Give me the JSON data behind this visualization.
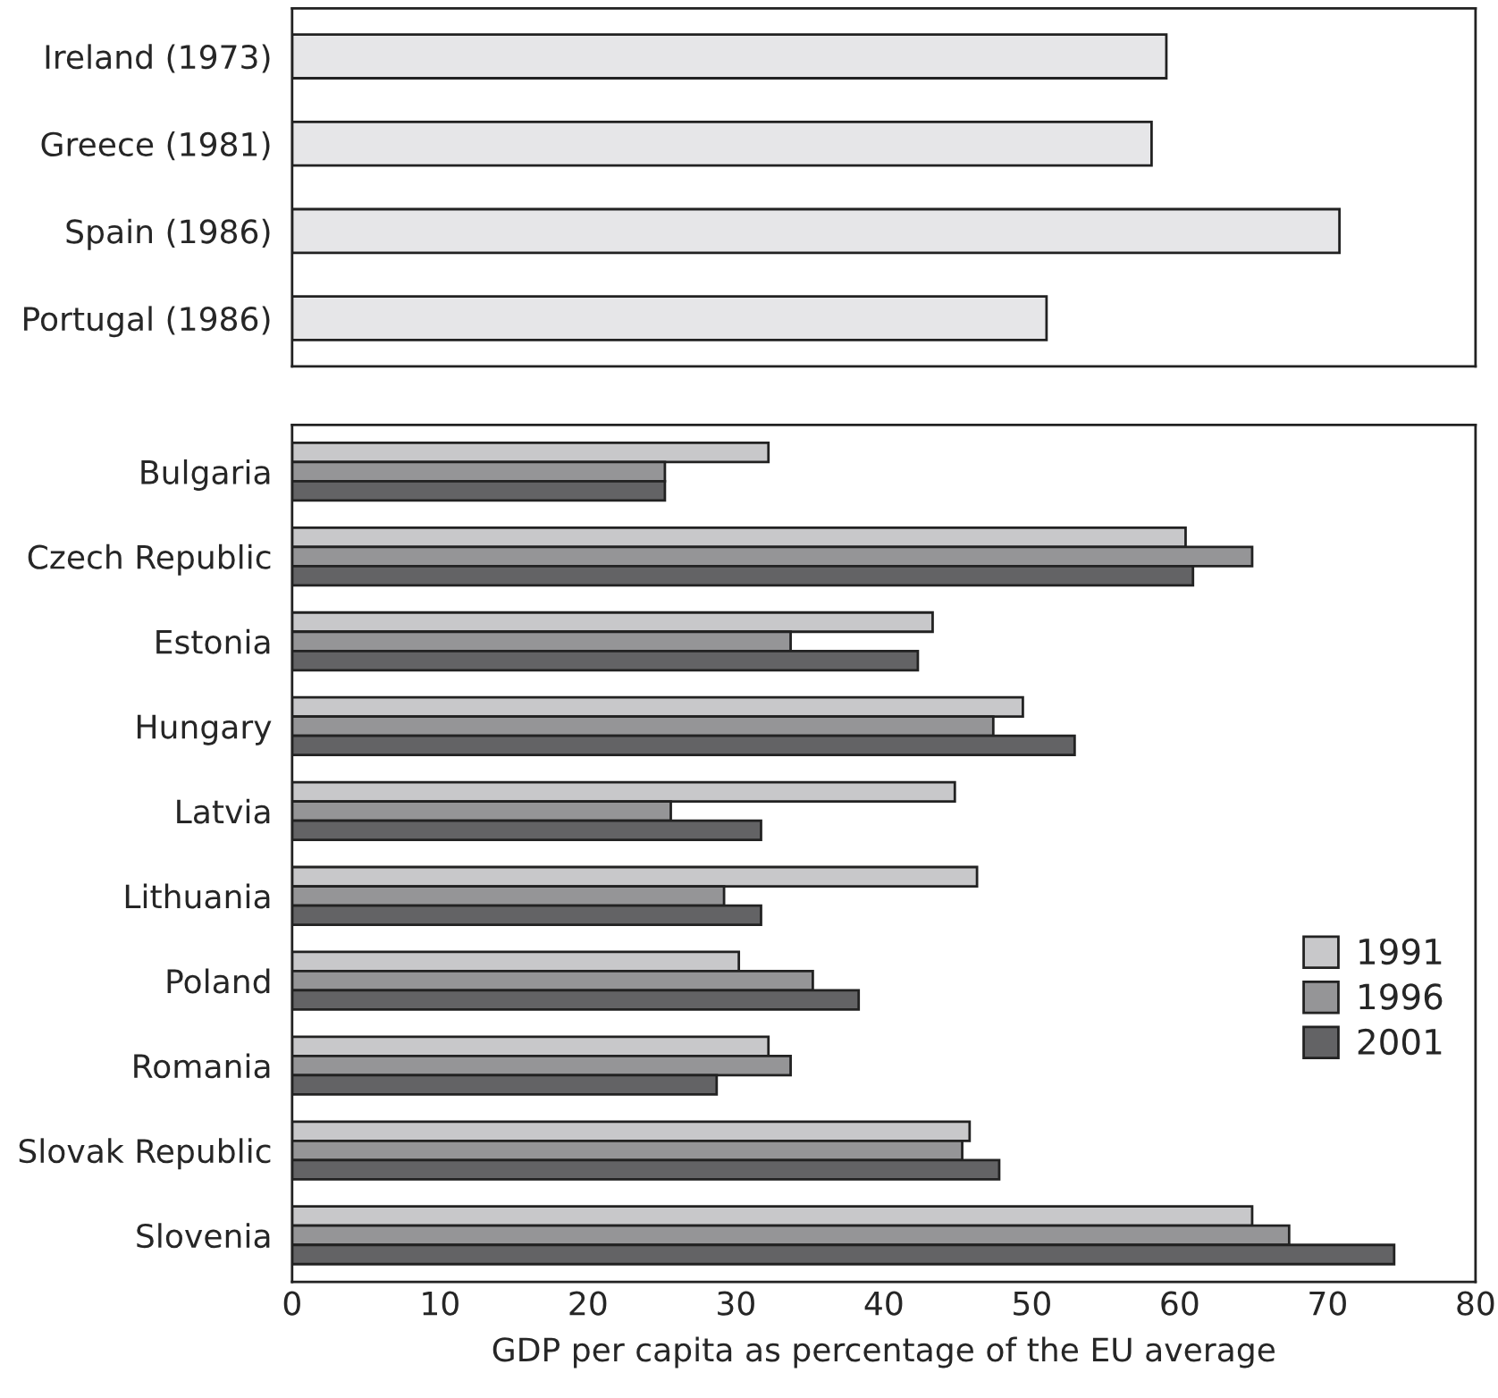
{
  "chart_data": [
    {
      "type": "bar",
      "orientation": "horizontal",
      "categories": [
        "Ireland (1973)",
        "Greece (1981)",
        "Spain (1986)",
        "Portugal (1986)"
      ],
      "series": [
        {
          "color": "#e6e6e8",
          "values": [
            59.1,
            58.1,
            70.8,
            51.0
          ]
        }
      ],
      "xlim": [
        0,
        80
      ],
      "xticks": [
        0,
        10,
        20,
        30,
        40,
        50,
        60,
        70,
        80
      ],
      "tick_labels": "y",
      "grid": false,
      "legend": false
    },
    {
      "type": "bar",
      "orientation": "horizontal",
      "categories": [
        "Bulgaria",
        "Czech Republic",
        "Estonia",
        "Hungary",
        "Latvia",
        "Lithuania",
        "Poland",
        "Romania",
        "Slovak Republic",
        "Slovenia"
      ],
      "series": [
        {
          "name": "1991",
          "color": "#c8c8ca",
          "values": [
            32.2,
            60.4,
            43.3,
            49.4,
            44.8,
            46.3,
            30.2,
            32.2,
            45.8,
            64.9
          ]
        },
        {
          "name": "1996",
          "color": "#959597",
          "values": [
            25.2,
            64.9,
            33.7,
            47.4,
            25.6,
            29.2,
            35.2,
            33.7,
            45.3,
            67.4
          ]
        },
        {
          "name": "2001",
          "color": "#636365",
          "values": [
            25.2,
            60.9,
            42.3,
            52.9,
            31.7,
            31.7,
            38.3,
            28.7,
            47.8,
            74.5
          ]
        }
      ],
      "xlim": [
        0,
        80
      ],
      "xticks": [
        0,
        10,
        20,
        30,
        40,
        50,
        60,
        70,
        80
      ],
      "xlabel": "GDP per capita as percentage of the EU average",
      "grid": false,
      "legend": "right"
    }
  ]
}
